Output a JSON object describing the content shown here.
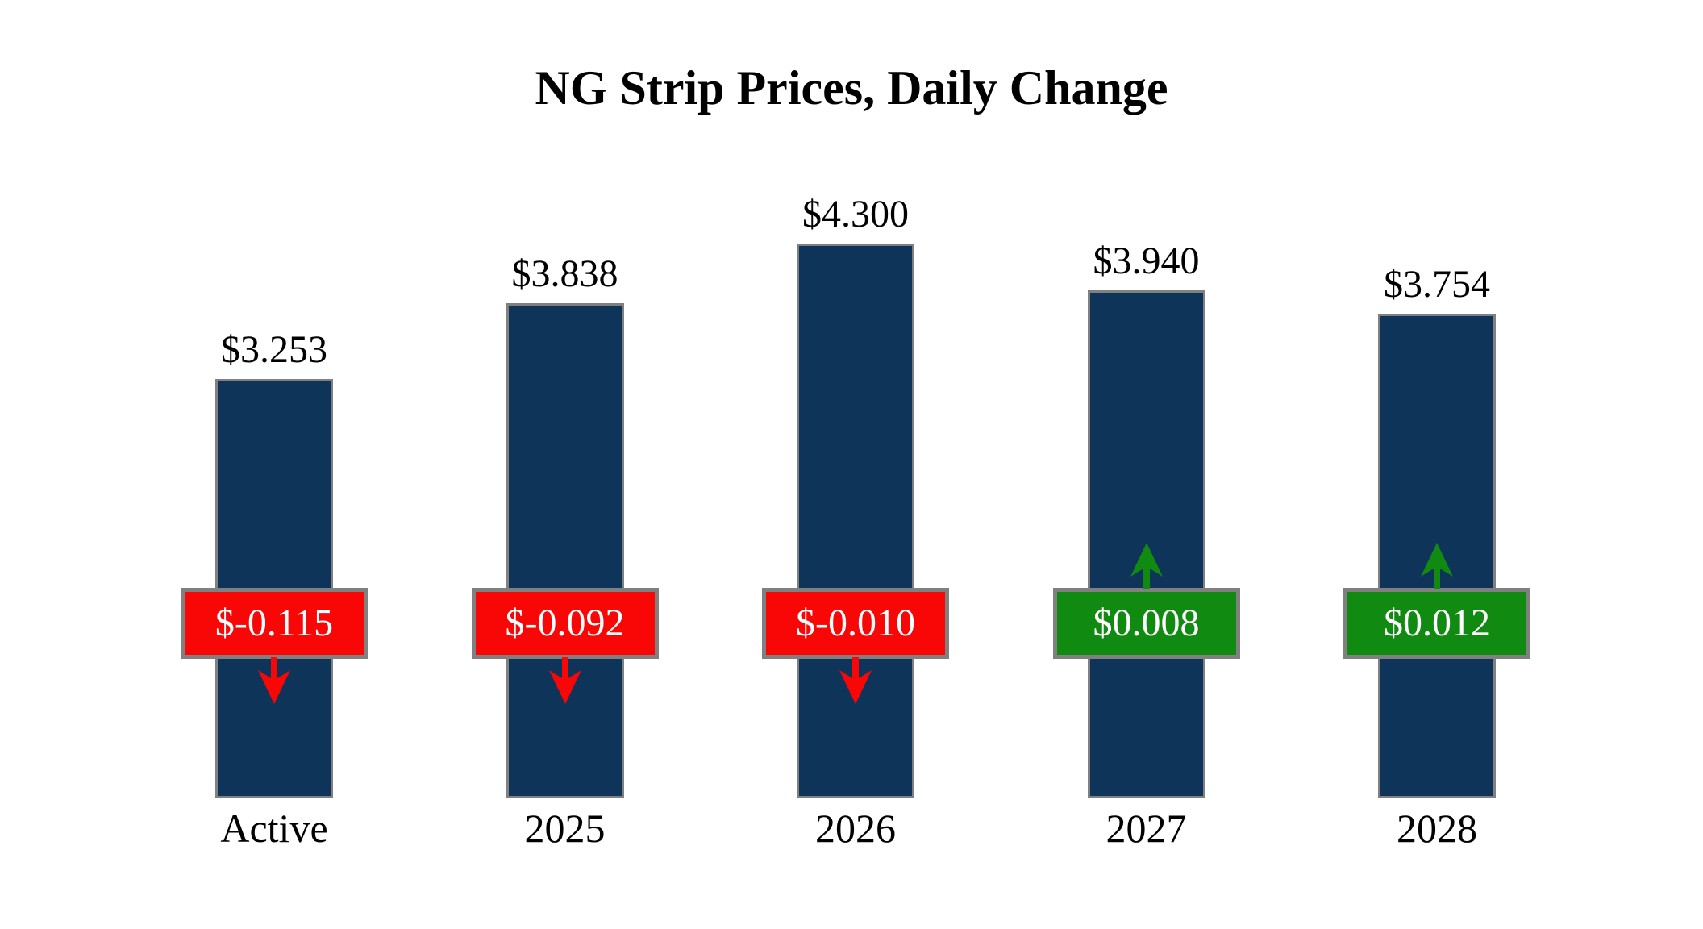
{
  "title": "NG Strip Prices, Daily Change",
  "chart_data": {
    "type": "bar",
    "title": "NG Strip Prices, Daily Change",
    "xlabel": "",
    "ylabel": "",
    "ylim": [
      0,
      4.5
    ],
    "grid": false,
    "legend": "none",
    "categories": [
      "Active",
      "2025",
      "2026",
      "2027",
      "2028"
    ],
    "values": [
      3.253,
      3.838,
      4.3,
      3.94,
      3.754
    ],
    "changes": [
      -0.115,
      -0.092,
      -0.01,
      0.008,
      0.012
    ],
    "bars": [
      {
        "category": "Active",
        "value": 3.253,
        "value_label": "$3.253",
        "change": -0.115,
        "change_label": "$-0.115",
        "direction": "down"
      },
      {
        "category": "2025",
        "value": 3.838,
        "value_label": "$3.838",
        "change": -0.092,
        "change_label": "$-0.092",
        "direction": "down"
      },
      {
        "category": "2026",
        "value": 4.3,
        "value_label": "$4.300",
        "change": -0.01,
        "change_label": "$-0.010",
        "direction": "down"
      },
      {
        "category": "2027",
        "value": 3.94,
        "value_label": "$3.940",
        "change": 0.008,
        "change_label": "$0.008",
        "direction": "up"
      },
      {
        "category": "2028",
        "value": 3.754,
        "value_label": "$3.754",
        "change": 0.012,
        "change_label": "$0.012",
        "direction": "up"
      }
    ],
    "colors": {
      "bar": "#0F3459",
      "negative": "#F90606",
      "positive": "#118A11",
      "border": "#808080",
      "value_text": "#000000",
      "change_text": "#FFFFFF",
      "background": "#FFFFFF"
    }
  }
}
